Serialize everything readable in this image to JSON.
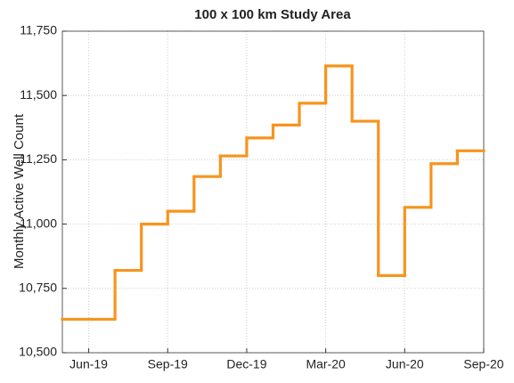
{
  "chart_data": {
    "type": "step",
    "title": "100 x 100 km Study Area",
    "y_label": "Monthly Active Well Count",
    "x": [
      "Jun-19",
      null,
      null,
      "Sep-19",
      null,
      null,
      "Dec-19",
      null,
      null,
      "Mar-20",
      null,
      null,
      "Jun-20",
      null,
      null,
      "Sep-20"
    ],
    "series": [
      {
        "name": "Monthly Active Well Count",
        "color": "#f7941d",
        "values": [
          10630,
          10630,
          10820,
          11000,
          11050,
          11185,
          11265,
          11335,
          11385,
          11470,
          11615,
          11400,
          10800,
          11065,
          11235,
          11285
        ]
      }
    ],
    "ylim": [
      10500,
      11750
    ],
    "yticks": [
      {
        "value": 10500,
        "label": "10,500"
      },
      {
        "value": 10750,
        "label": "10,750"
      },
      {
        "value": 11000,
        "label": "11,000"
      },
      {
        "value": 11250,
        "label": "11,250"
      },
      {
        "value": 11500,
        "label": "11,500"
      },
      {
        "value": 11750,
        "label": "11,750"
      }
    ],
    "grid": true
  }
}
